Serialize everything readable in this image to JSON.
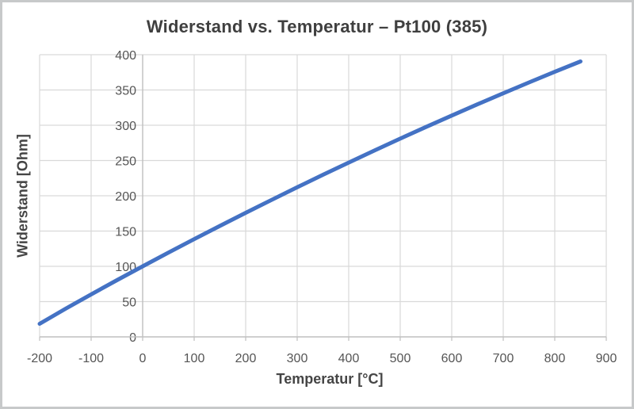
{
  "chart_data": {
    "type": "line",
    "title": "Widerstand vs. Temperatur – Pt100 (385)",
    "xlabel": "Temperatur [°C]",
    "ylabel": "Widerstand [Ohm]",
    "xlim": [
      -200,
      900
    ],
    "ylim": [
      0,
      400
    ],
    "x_ticks": [
      -200,
      -100,
      0,
      100,
      200,
      300,
      400,
      500,
      600,
      700,
      800,
      900
    ],
    "y_ticks": [
      0,
      50,
      100,
      150,
      200,
      250,
      300,
      350,
      400
    ],
    "grid": true,
    "legend": false,
    "series": [
      {
        "name": "Pt100 (385)",
        "color": "#4472C4",
        "x": [
          -200,
          -150,
          -100,
          -50,
          0,
          50,
          100,
          150,
          200,
          250,
          300,
          350,
          400,
          450,
          500,
          550,
          600,
          650,
          700,
          750,
          800,
          850
        ],
        "y": [
          18.52,
          39.72,
          60.26,
          80.31,
          100.0,
          119.4,
          138.51,
          157.33,
          175.86,
          194.1,
          212.05,
          229.72,
          247.09,
          264.18,
          280.98,
          297.49,
          313.71,
          329.64,
          345.28,
          360.64,
          375.7,
          390.48
        ]
      }
    ]
  },
  "colors": {
    "series_line": "#4472C4",
    "gridline": "#d9d9d9",
    "axis_line": "#bfbfbf",
    "tick_text": "#555555",
    "title_text": "#3f3f3f",
    "frame_border": "#c7c9ca",
    "background": "#ffffff"
  }
}
